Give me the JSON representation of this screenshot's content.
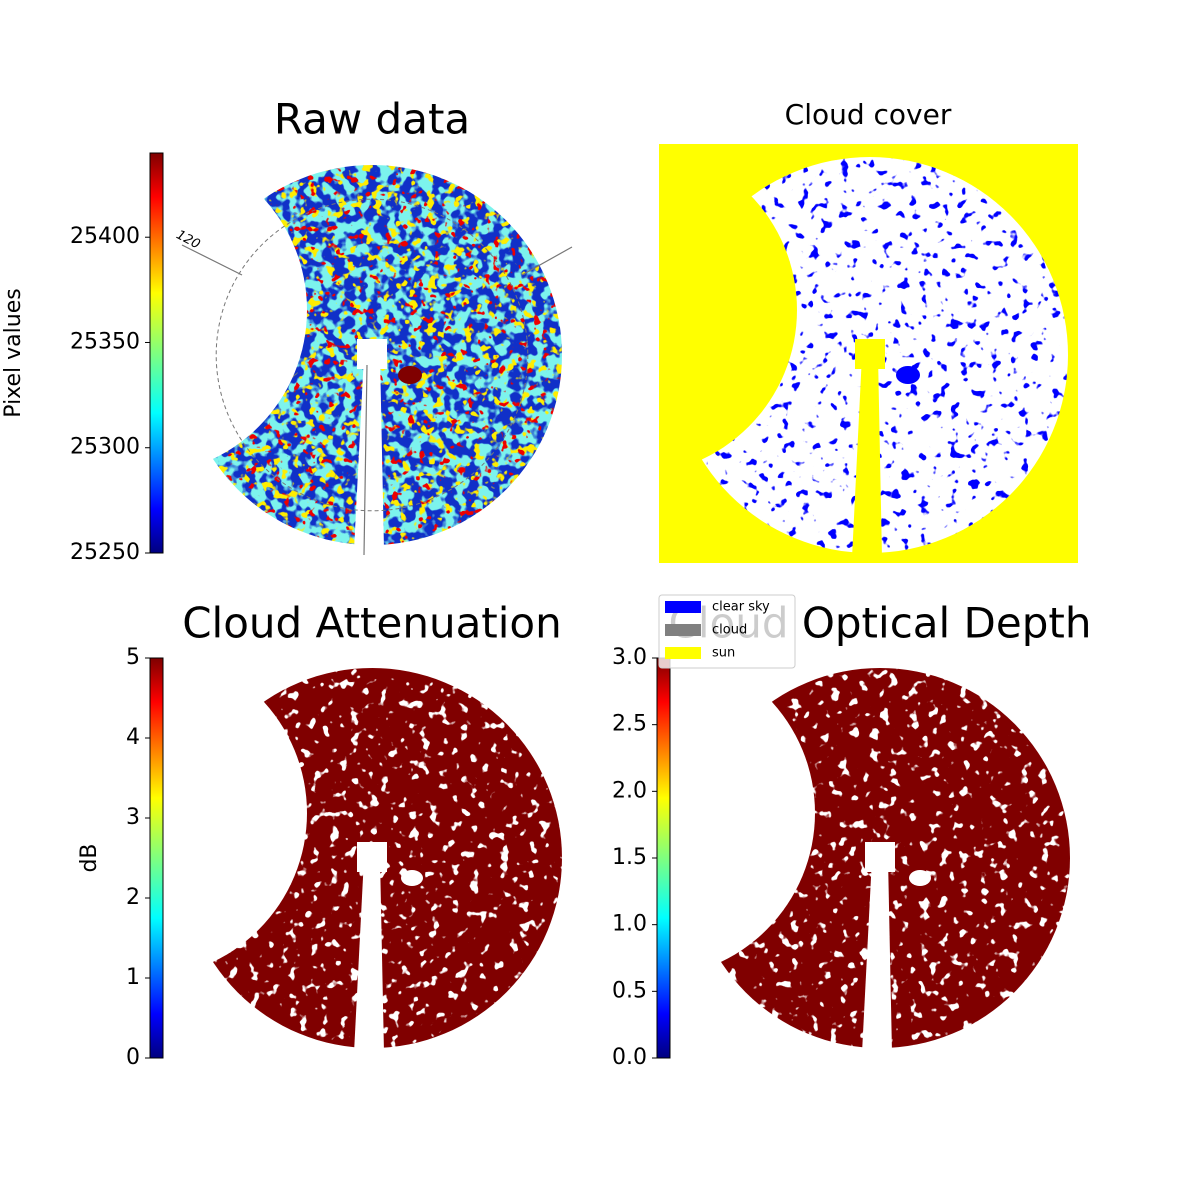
{
  "chart_data": [
    {
      "type": "image",
      "title": "Raw data",
      "colormap": "jet",
      "colorbar": {
        "label": "Pixel values",
        "lim": [
          25250,
          25440
        ],
        "ticks": [
          25250,
          25300,
          25350,
          25400
        ]
      },
      "annotations": [
        "120"
      ]
    },
    {
      "type": "image",
      "title": "Cloud cover",
      "background": "#ffff00",
      "legend": [
        {
          "name": "clear sky",
          "color": "#0000ff"
        },
        {
          "name": "cloud",
          "color": "#808080"
        },
        {
          "name": "sun",
          "color": "#ffff00"
        }
      ]
    },
    {
      "type": "image",
      "title": "Cloud Attenuation",
      "colormap": "jet",
      "color": "#800000",
      "colorbar": {
        "label": "dB",
        "lim": [
          0,
          5
        ],
        "ticks": [
          0,
          1,
          2,
          3,
          4,
          5
        ]
      }
    },
    {
      "type": "image",
      "title": "Cloud Optical Depth",
      "colormap": "jet",
      "color": "#800000",
      "colorbar": {
        "lim": [
          0,
          3
        ],
        "ticks": [
          {
            "value": 0,
            "label": "0.0"
          },
          {
            "value": 0.5,
            "label": "0.5"
          },
          {
            "value": 1,
            "label": "1.0"
          },
          {
            "value": 1.5,
            "label": "1.5"
          },
          {
            "value": 2,
            "label": "2.0"
          },
          {
            "value": 2.5,
            "label": "2.5"
          },
          {
            "value": 3,
            "label": "3.0"
          }
        ]
      }
    }
  ]
}
